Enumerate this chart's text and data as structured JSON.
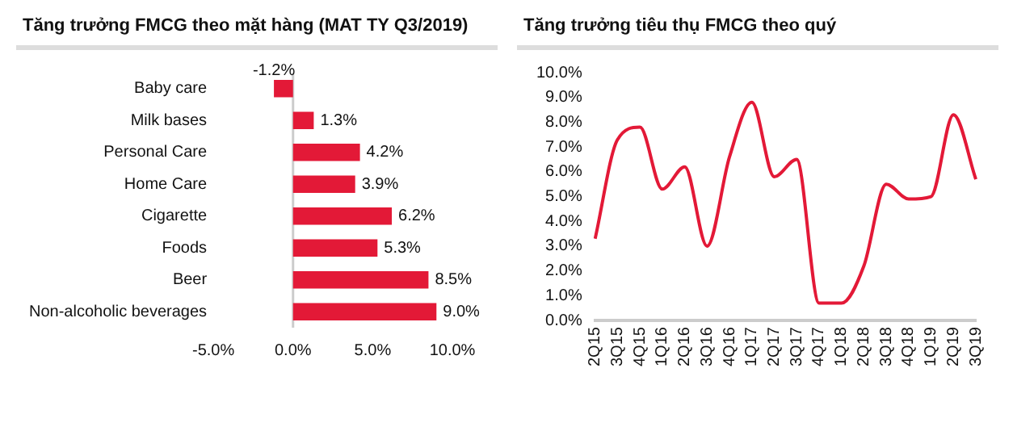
{
  "chart_data": [
    {
      "type": "bar",
      "orientation": "horizontal",
      "title": "Tăng trưởng FMCG theo mặt hàng (MAT TY Q3/2019)",
      "categories": [
        "Baby care",
        "Milk bases",
        "Personal Care",
        "Home Care",
        "Cigarette",
        "Foods",
        "Beer",
        "Non-alcoholic beverages"
      ],
      "values": [
        -1.2,
        1.3,
        4.2,
        3.9,
        6.2,
        5.3,
        8.5,
        9.0
      ],
      "value_labels": [
        "-1.2%",
        "1.3%",
        "4.2%",
        "3.9%",
        "6.2%",
        "5.3%",
        "8.5%",
        "9.0%"
      ],
      "color": "#e31937",
      "xlim": [
        -5,
        10
      ],
      "xticks": [
        {
          "value": -5,
          "label": "-5.0%"
        },
        {
          "value": 0,
          "label": "0.0%"
        },
        {
          "value": 5,
          "label": "5.0%"
        },
        {
          "value": 10,
          "label": "10.0%"
        }
      ]
    },
    {
      "type": "line",
      "title": "Tăng trưởng tiêu thụ FMCG theo quý",
      "categories": [
        "2Q15",
        "3Q15",
        "4Q15",
        "1Q16",
        "2Q16",
        "3Q16",
        "4Q16",
        "1Q17",
        "2Q17",
        "3Q17",
        "4Q17",
        "1Q18",
        "2Q18",
        "3Q18",
        "4Q18",
        "1Q19",
        "2Q19",
        "3Q19"
      ],
      "values": [
        3.3,
        7.3,
        7.8,
        5.3,
        6.2,
        3.0,
        6.6,
        8.8,
        5.8,
        6.5,
        0.7,
        0.7,
        2.2,
        5.5,
        4.9,
        5.0,
        8.3,
        5.7
      ],
      "color": "#e31937",
      "marker": "none",
      "ylim": [
        0,
        10
      ],
      "yticks": [
        {
          "value": 0,
          "label": "0.0%"
        },
        {
          "value": 1,
          "label": "1.0%"
        },
        {
          "value": 2,
          "label": "2.0%"
        },
        {
          "value": 3,
          "label": "3.0%"
        },
        {
          "value": 4,
          "label": "4.0%"
        },
        {
          "value": 5,
          "label": "5.0%"
        },
        {
          "value": 6,
          "label": "6.0%"
        },
        {
          "value": 7,
          "label": "7.0%"
        },
        {
          "value": 8,
          "label": "8.0%"
        },
        {
          "value": 9,
          "label": "9.0%"
        },
        {
          "value": 10,
          "label": "10.0%"
        }
      ]
    }
  ]
}
